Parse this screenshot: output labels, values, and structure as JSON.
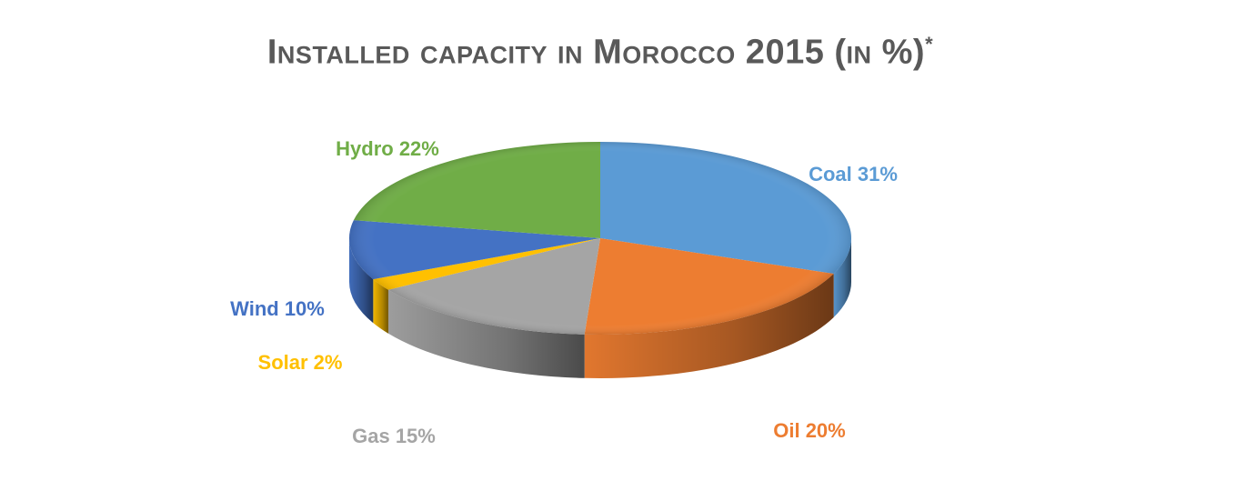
{
  "title": {
    "text": "Installed capacity in Morocco 2015 (in %)",
    "marker": "*"
  },
  "chart_data": {
    "type": "pie",
    "title": "Installed capacity in Morocco 2015 (in %)*",
    "style": "3d",
    "slices": [
      {
        "name": "Coal",
        "value": 31,
        "label": "Coal 31%",
        "color": "#5B9BD5"
      },
      {
        "name": "Oil",
        "value": 20,
        "label": "Oil 20%",
        "color": "#ED7D31"
      },
      {
        "name": "Gas",
        "value": 15,
        "label": "Gas 15%",
        "color": "#A5A5A5"
      },
      {
        "name": "Solar",
        "value": 2,
        "label": "Solar 2%",
        "color": "#FFC000"
      },
      {
        "name": "Wind",
        "value": 10,
        "label": "Wind 10%",
        "color": "#4472C4"
      },
      {
        "name": "Hydro",
        "value": 22,
        "label": "Hydro 22%",
        "color": "#70AD47"
      }
    ]
  }
}
